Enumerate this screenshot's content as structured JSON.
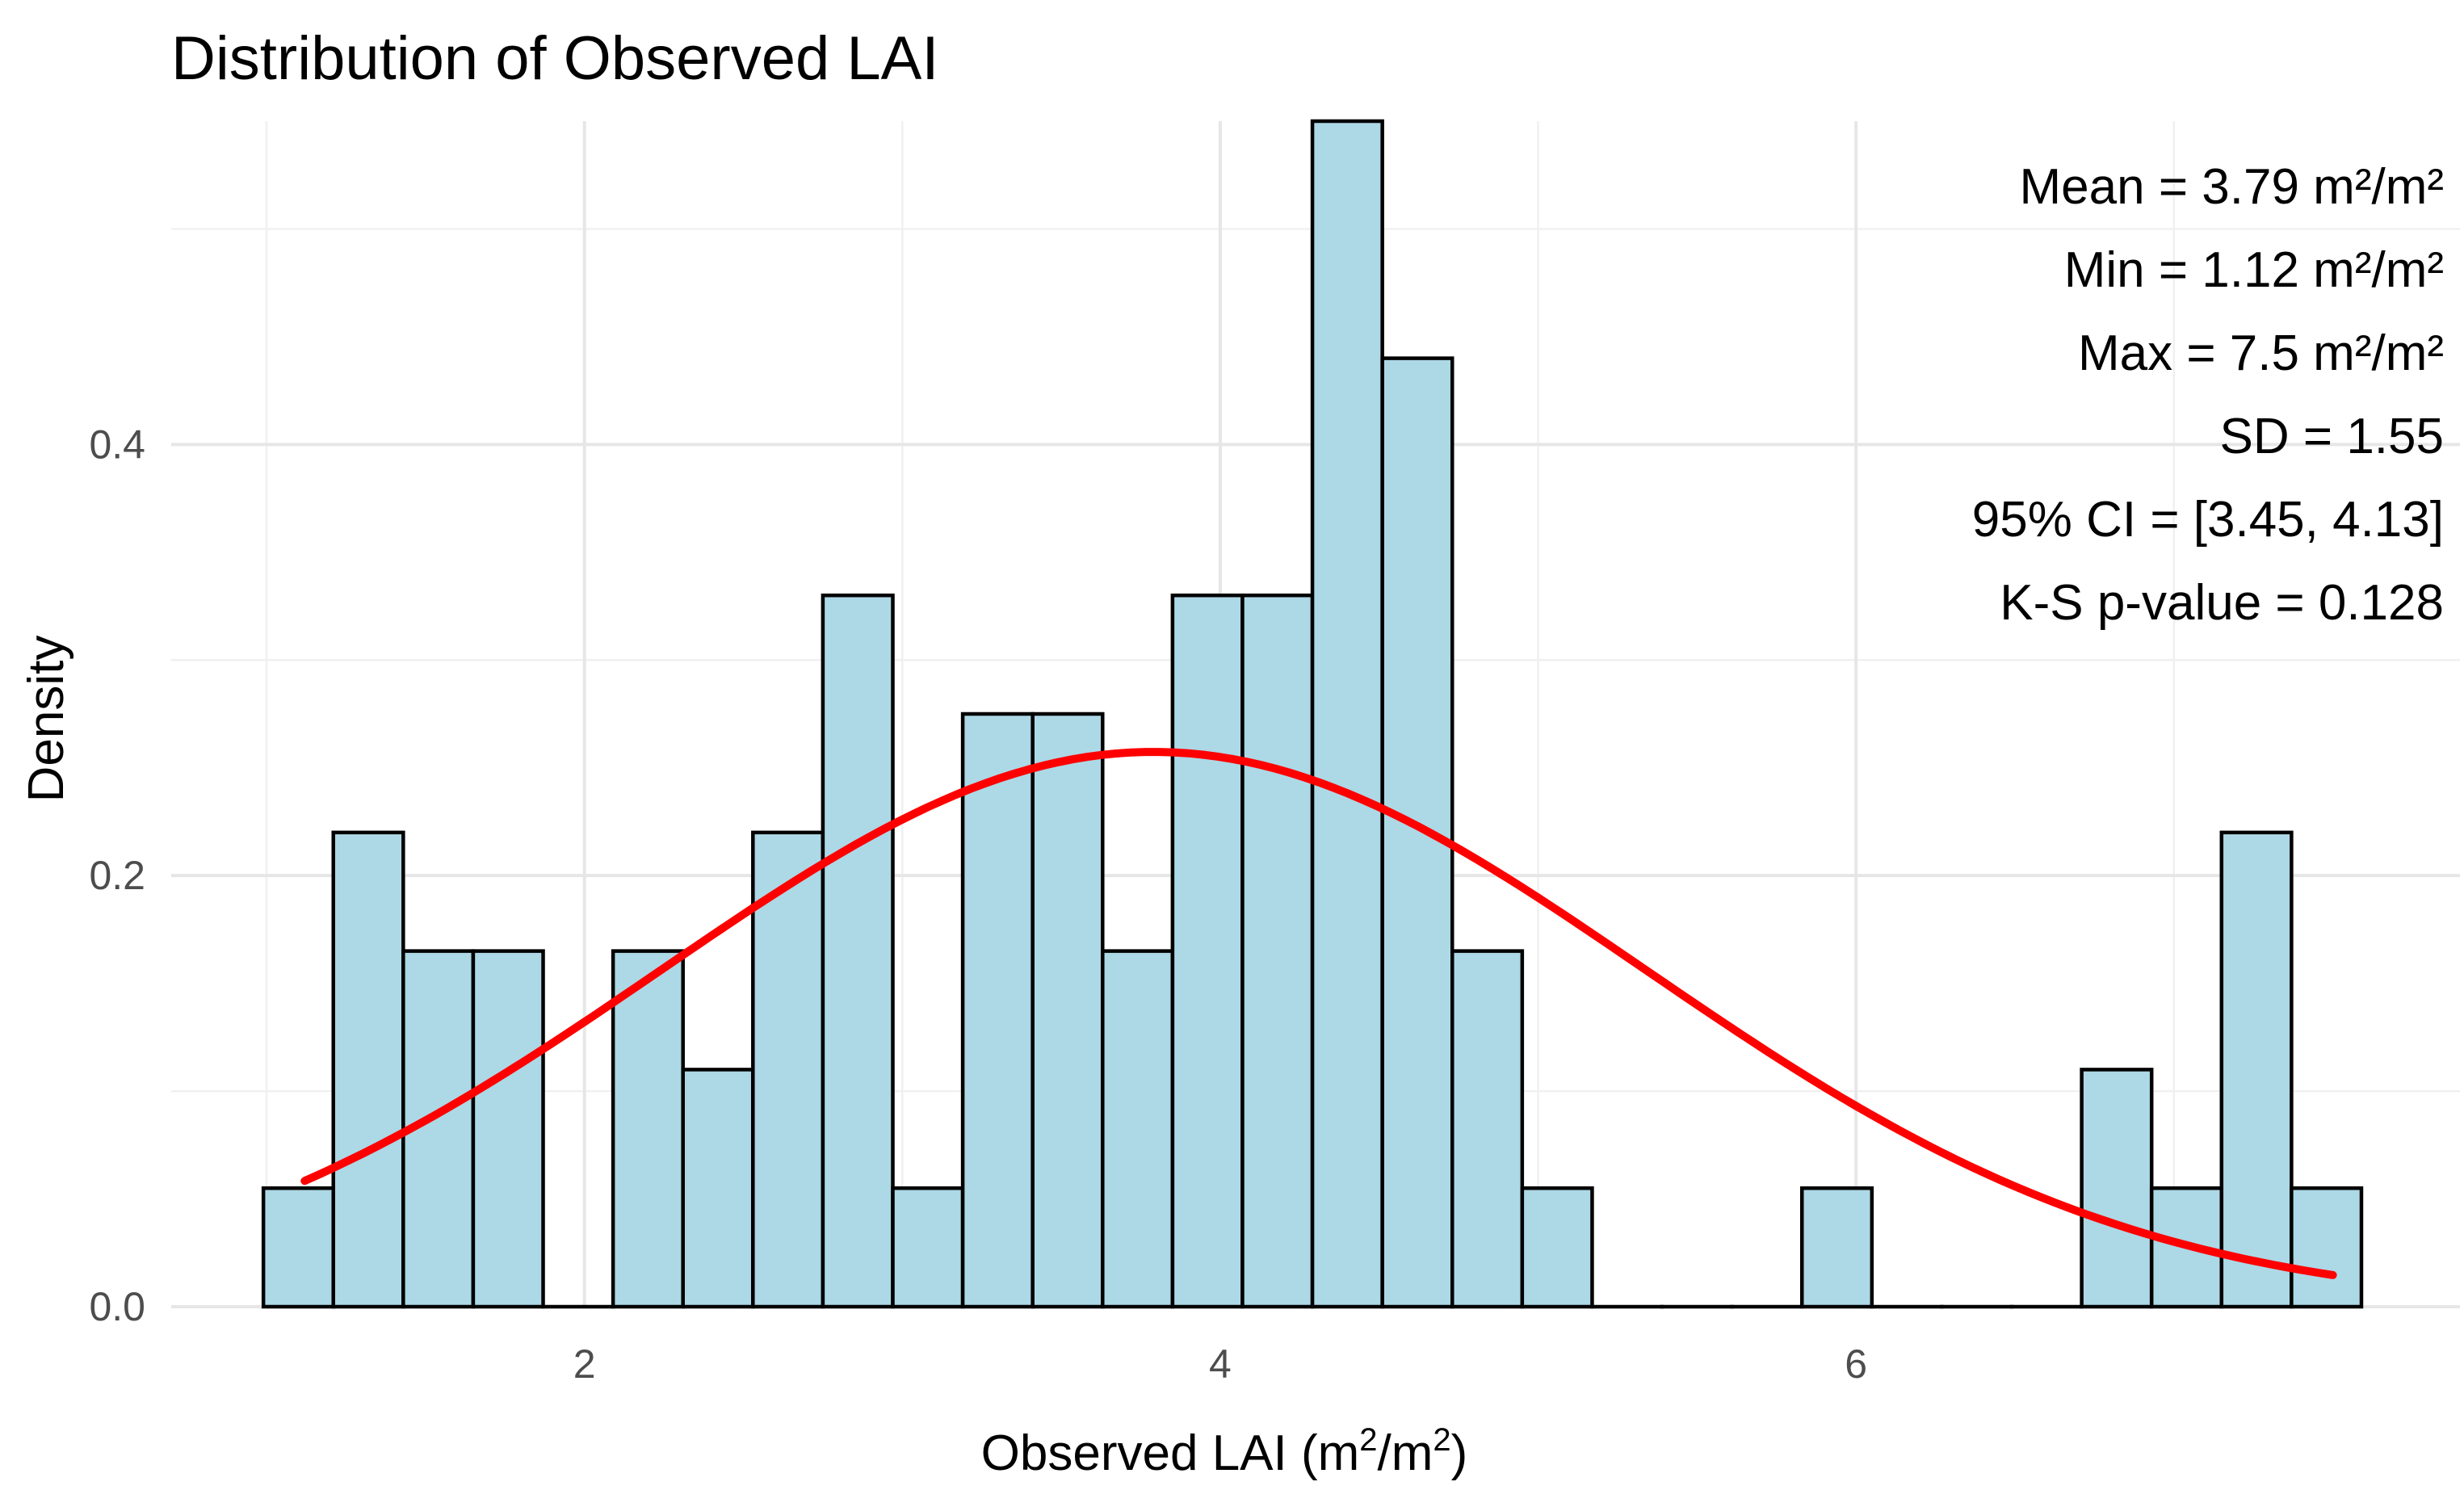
{
  "chart_data": {
    "type": "histogram",
    "title": "Distribution of Observed LAI",
    "xlabel": "Observed LAI (m",
    "xlabel_unit_exp": "2",
    "xlabel_mid": "/m",
    "xlabel_close": ")",
    "ylabel": "Density",
    "xlim": [
      0.7,
      7.9
    ],
    "ylim": [
      0,
      0.55
    ],
    "x_ticks": [
      2,
      4,
      6
    ],
    "x_tick_labels": [
      "2",
      "4",
      "6"
    ],
    "y_ticks": [
      0.0,
      0.2,
      0.4
    ],
    "y_tick_labels": [
      "0.0",
      "0.2",
      "0.4"
    ],
    "bin_width": 0.22,
    "bins": [
      {
        "start": 0.99,
        "density": 0.055
      },
      {
        "start": 1.21,
        "density": 0.22
      },
      {
        "start": 1.43,
        "density": 0.165
      },
      {
        "start": 1.65,
        "density": 0.165
      },
      {
        "start": 1.87,
        "density": 0.0
      },
      {
        "start": 2.09,
        "density": 0.165
      },
      {
        "start": 2.31,
        "density": 0.11
      },
      {
        "start": 2.53,
        "density": 0.22
      },
      {
        "start": 2.75,
        "density": 0.33
      },
      {
        "start": 2.97,
        "density": 0.055
      },
      {
        "start": 3.19,
        "density": 0.275
      },
      {
        "start": 3.41,
        "density": 0.275
      },
      {
        "start": 3.63,
        "density": 0.165
      },
      {
        "start": 3.85,
        "density": 0.33
      },
      {
        "start": 4.07,
        "density": 0.33
      },
      {
        "start": 4.29,
        "density": 0.55
      },
      {
        "start": 4.51,
        "density": 0.44
      },
      {
        "start": 4.73,
        "density": 0.165
      },
      {
        "start": 4.95,
        "density": 0.055
      },
      {
        "start": 5.17,
        "density": 0.0
      },
      {
        "start": 5.39,
        "density": 0.0
      },
      {
        "start": 5.61,
        "density": 0.0
      },
      {
        "start": 5.83,
        "density": 0.055
      },
      {
        "start": 6.05,
        "density": 0.0
      },
      {
        "start": 6.27,
        "density": 0.0
      },
      {
        "start": 6.49,
        "density": 0.0
      },
      {
        "start": 6.71,
        "density": 0.11
      },
      {
        "start": 6.93,
        "density": 0.055
      },
      {
        "start": 7.15,
        "density": 0.22
      },
      {
        "start": 7.37,
        "density": 0.055
      }
    ],
    "normal_curve": {
      "mean": 3.79,
      "sd": 1.55,
      "x_from": 1.12,
      "x_to": 7.5,
      "color": "#ff0000"
    },
    "bar_fill": "#add8e6",
    "annotations": [
      "Mean = 3.79 m²/m²",
      "Min = 1.12 m²/m²",
      "Max = 7.5 m²/m²",
      "SD = 1.55",
      "95% CI = [3.45, 4.13]",
      "K-S p-value = 0.128"
    ]
  }
}
